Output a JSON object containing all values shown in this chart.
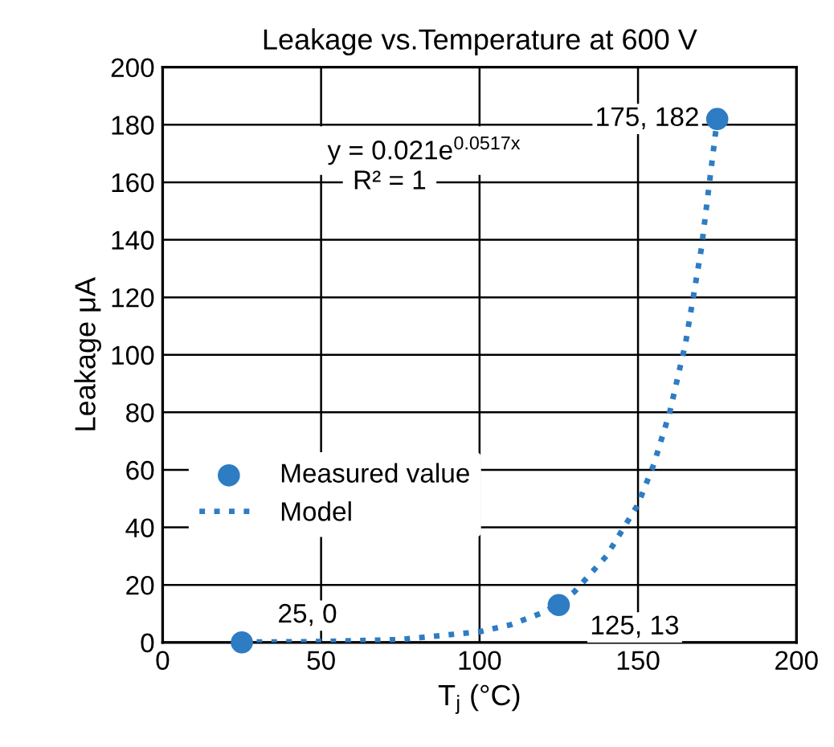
{
  "chart_data": {
    "type": "scatter",
    "title": "Leakage vs.Temperature at 600 V",
    "xlabel": "T$_{j}$ (°C)",
    "ylabel": "Leakage μA",
    "xlim": [
      0,
      200
    ],
    "xticks": [
      0,
      50,
      100,
      150,
      200
    ],
    "ylim": [
      0,
      200
    ],
    "yticks": [
      0,
      20,
      40,
      60,
      80,
      100,
      120,
      140,
      160,
      180,
      200
    ],
    "grid": true,
    "legend": "bottom left",
    "series": [
      {
        "name": "Measured value",
        "color": "#2e7cc4",
        "marker": "circle",
        "x": [
          25,
          125,
          175
        ],
        "values": [
          0,
          13,
          182
        ]
      },
      {
        "name": "Model",
        "type": "line",
        "color": "#2e7cc4",
        "line_style": "dotted",
        "marker": "none",
        "x": [
          25,
          50,
          75,
          100,
          110,
          120,
          125,
          130,
          140,
          150,
          155,
          160,
          165,
          170,
          175
        ],
        "values": [
          0.1,
          0.3,
          1,
          3.7,
          6.2,
          10.4,
          13.4,
          17.7,
          30,
          48,
          62,
          80,
          104,
          137,
          182
        ]
      }
    ],
    "annotations": [
      {
        "text": "25, 0",
        "x": 25,
        "y": 0
      },
      {
        "text": "125, 13",
        "x": 125,
        "y": 13
      },
      {
        "text": "175, 182",
        "x": 175,
        "y": 182
      },
      "y = 0.021e$^{0.0517x}$",
      "R² = 1"
    ]
  }
}
